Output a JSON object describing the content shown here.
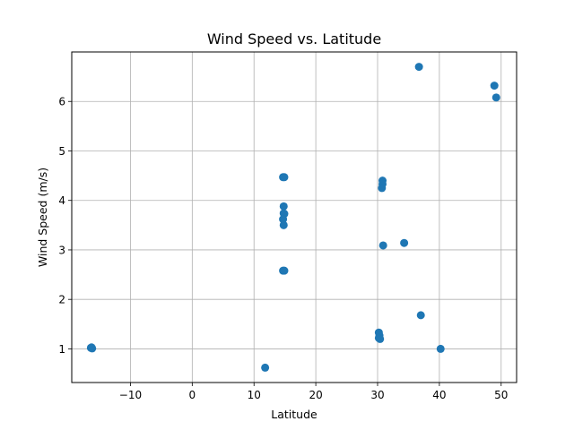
{
  "chart_data": {
    "type": "scatter",
    "title": "Wind Speed vs. Latitude",
    "xlabel": "Latitude",
    "ylabel": "Wind Speed (m/s)",
    "xlim": [
      -19.5,
      52.5
    ],
    "ylim": [
      0.32,
      7.0
    ],
    "xticks": [
      -10,
      0,
      10,
      20,
      30,
      40,
      50
    ],
    "yticks": [
      1,
      2,
      3,
      4,
      5,
      6
    ],
    "grid": true,
    "color": "#1f77b4",
    "points": [
      {
        "x": -16.4,
        "y": 1.02
      },
      {
        "x": -16.3,
        "y": 1.03
      },
      {
        "x": -16.2,
        "y": 1.01
      },
      {
        "x": 11.8,
        "y": 0.62
      },
      {
        "x": 14.7,
        "y": 4.47
      },
      {
        "x": 14.9,
        "y": 4.47
      },
      {
        "x": 14.8,
        "y": 3.88
      },
      {
        "x": 14.8,
        "y": 3.74
      },
      {
        "x": 14.9,
        "y": 3.73
      },
      {
        "x": 14.7,
        "y": 3.62
      },
      {
        "x": 14.8,
        "y": 3.5
      },
      {
        "x": 14.7,
        "y": 2.58
      },
      {
        "x": 14.9,
        "y": 2.58
      },
      {
        "x": 30.2,
        "y": 1.33
      },
      {
        "x": 30.3,
        "y": 1.27
      },
      {
        "x": 30.2,
        "y": 1.22
      },
      {
        "x": 30.4,
        "y": 1.2
      },
      {
        "x": 30.8,
        "y": 4.4
      },
      {
        "x": 30.8,
        "y": 4.33
      },
      {
        "x": 30.7,
        "y": 4.25
      },
      {
        "x": 30.9,
        "y": 3.09
      },
      {
        "x": 34.3,
        "y": 3.14
      },
      {
        "x": 36.7,
        "y": 6.7
      },
      {
        "x": 37.0,
        "y": 1.68
      },
      {
        "x": 40.2,
        "y": 1.0
      },
      {
        "x": 48.9,
        "y": 6.32
      },
      {
        "x": 49.2,
        "y": 6.08
      }
    ]
  }
}
